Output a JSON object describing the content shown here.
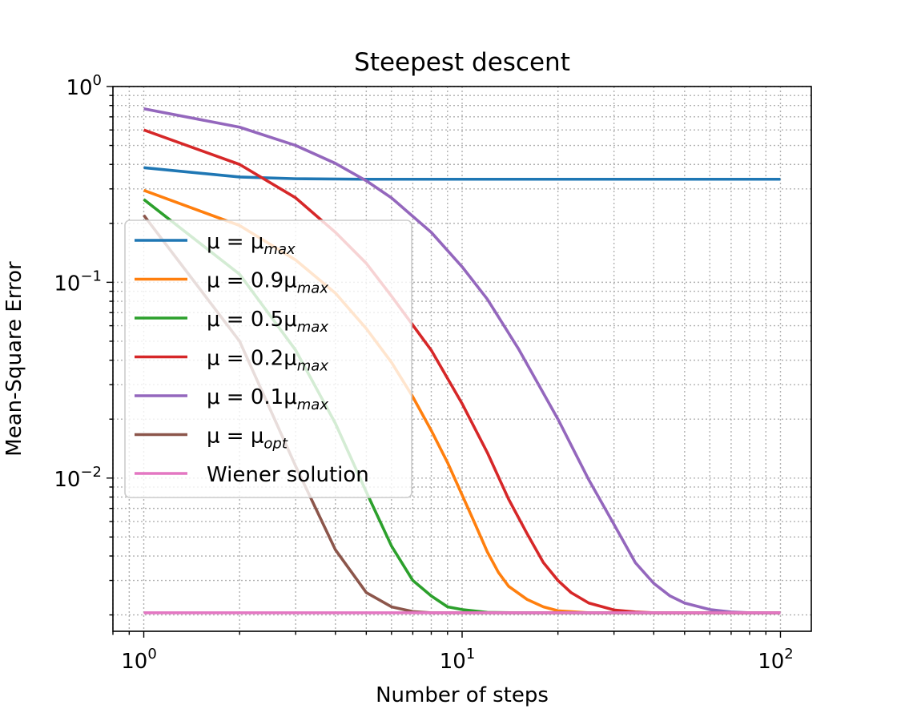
{
  "chart_data": {
    "type": "line",
    "title": "Steepest descent",
    "xlabel": "Number of steps",
    "ylabel": "Mean-Square Error",
    "xscale": "log",
    "yscale": "log",
    "xlim": [
      0.8,
      125
    ],
    "ylim": [
      0.00165,
      1.0
    ],
    "grid": true,
    "legend_placement": "center-left",
    "x_ticks": [
      {
        "value": 1,
        "base": "10",
        "exp": "0"
      },
      {
        "value": 10,
        "base": "10",
        "exp": "1"
      },
      {
        "value": 100,
        "base": "10",
        "exp": "2"
      }
    ],
    "y_ticks": [
      {
        "value": 1,
        "base": "10",
        "exp": "0"
      },
      {
        "value": 0.1,
        "base": "10",
        "exp": "−1"
      },
      {
        "value": 0.01,
        "base": "10",
        "exp": "−2"
      }
    ],
    "series": [
      {
        "legend": {
          "pre": "μ = μ",
          "sub": "max"
        },
        "color": "#1f77b4",
        "points": [
          [
            1,
            0.385
          ],
          [
            2,
            0.345
          ],
          [
            3,
            0.338
          ],
          [
            5,
            0.336
          ],
          [
            10,
            0.336
          ],
          [
            20,
            0.336
          ],
          [
            50,
            0.336
          ],
          [
            100,
            0.336
          ]
        ]
      },
      {
        "legend": {
          "pre": "μ = 0.9μ",
          "sub": "max"
        },
        "color": "#ff7f0e",
        "points": [
          [
            1,
            0.295
          ],
          [
            2,
            0.195
          ],
          [
            3,
            0.13
          ],
          [
            4,
            0.088
          ],
          [
            5,
            0.058
          ],
          [
            6,
            0.039
          ],
          [
            7,
            0.026
          ],
          [
            8,
            0.0175
          ],
          [
            9,
            0.012
          ],
          [
            10,
            0.0082
          ],
          [
            11,
            0.0058
          ],
          [
            12,
            0.0042
          ],
          [
            13,
            0.0033
          ],
          [
            14,
            0.0028
          ],
          [
            16,
            0.0024
          ],
          [
            18,
            0.0022
          ],
          [
            20,
            0.0021
          ],
          [
            25,
            0.00205
          ],
          [
            30,
            0.00205
          ],
          [
            50,
            0.00205
          ],
          [
            100,
            0.00205
          ]
        ]
      },
      {
        "legend": {
          "pre": "μ = 0.5μ",
          "sub": "max"
        },
        "color": "#2ca02c",
        "points": [
          [
            1,
            0.265
          ],
          [
            2,
            0.11
          ],
          [
            3,
            0.045
          ],
          [
            4,
            0.019
          ],
          [
            5,
            0.0085
          ],
          [
            6,
            0.0045
          ],
          [
            7,
            0.003
          ],
          [
            8,
            0.0025
          ],
          [
            9,
            0.0022
          ],
          [
            10,
            0.00213
          ],
          [
            12,
            0.00206
          ],
          [
            15,
            0.00205
          ],
          [
            30,
            0.00205
          ],
          [
            100,
            0.00205
          ]
        ]
      },
      {
        "legend": {
          "pre": "μ = 0.2μ",
          "sub": "max"
        },
        "color": "#d62728",
        "points": [
          [
            1,
            0.6
          ],
          [
            2,
            0.4
          ],
          [
            3,
            0.27
          ],
          [
            4,
            0.18
          ],
          [
            5,
            0.125
          ],
          [
            6,
            0.085
          ],
          [
            8,
            0.045
          ],
          [
            10,
            0.024
          ],
          [
            12,
            0.0135
          ],
          [
            14,
            0.0078
          ],
          [
            16,
            0.0052
          ],
          [
            18,
            0.0037
          ],
          [
            20,
            0.003
          ],
          [
            22,
            0.0026
          ],
          [
            25,
            0.0023
          ],
          [
            30,
            0.00212
          ],
          [
            35,
            0.00207
          ],
          [
            40,
            0.00205
          ],
          [
            100,
            0.00205
          ]
        ]
      },
      {
        "legend": {
          "pre": "μ = 0.1μ",
          "sub": "max"
        },
        "color": "#9467bd",
        "points": [
          [
            1,
            0.77
          ],
          [
            2,
            0.62
          ],
          [
            3,
            0.5
          ],
          [
            4,
            0.405
          ],
          [
            5,
            0.33
          ],
          [
            6,
            0.27
          ],
          [
            8,
            0.18
          ],
          [
            10,
            0.12
          ],
          [
            12,
            0.082
          ],
          [
            15,
            0.046
          ],
          [
            20,
            0.02
          ],
          [
            25,
            0.0098
          ],
          [
            30,
            0.0058
          ],
          [
            35,
            0.0037
          ],
          [
            40,
            0.0029
          ],
          [
            45,
            0.0025
          ],
          [
            50,
            0.0023
          ],
          [
            60,
            0.00213
          ],
          [
            70,
            0.00207
          ],
          [
            80,
            0.00205
          ],
          [
            100,
            0.00205
          ]
        ]
      },
      {
        "legend": {
          "pre": "μ = μ",
          "sub": "opt"
        },
        "color": "#8c564b",
        "points": [
          [
            1,
            0.22
          ],
          [
            2,
            0.05
          ],
          [
            3,
            0.0115
          ],
          [
            4,
            0.0043
          ],
          [
            5,
            0.0026
          ],
          [
            6,
            0.0022
          ],
          [
            7,
            0.00208
          ],
          [
            8,
            0.00205
          ],
          [
            100,
            0.00205
          ]
        ]
      },
      {
        "legend": {
          "pre": "Wiener solution",
          "sub": ""
        },
        "color": "#e377c2",
        "points": [
          [
            1,
            0.00205
          ],
          [
            100,
            0.00205
          ]
        ]
      }
    ]
  }
}
